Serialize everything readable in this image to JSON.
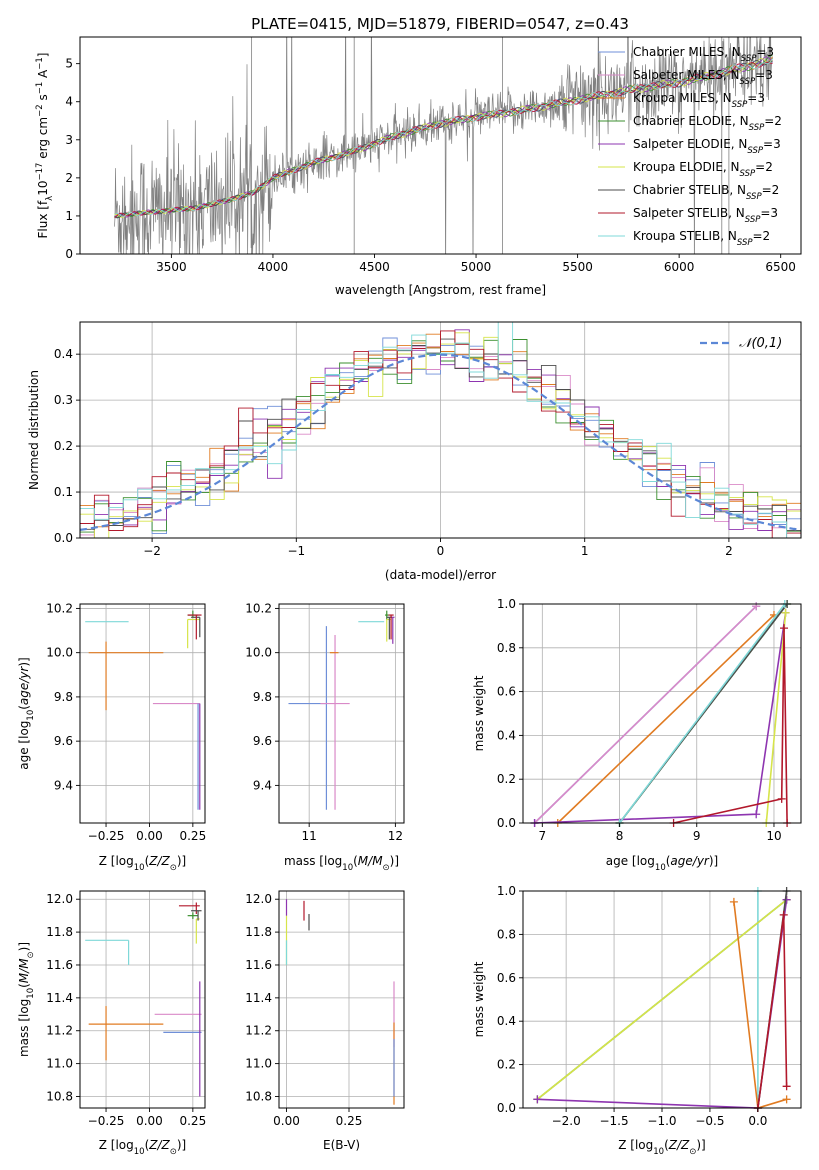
{
  "figure_title": "PLATE=0415, MJD=51879, FIBERID=0547, z=0.43",
  "colors": {
    "Chabrier MILES": "#6f8fd8",
    "Salpeter MILES": "#d98ac8",
    "Kroupa MILES": "#e07b22",
    "Chabrier ELODIE": "#3b8f2f",
    "Salpeter ELODIE": "#8e35b0",
    "Kroupa ELODIE": "#d6e44a",
    "Chabrier STELIB": "#4d4d4d",
    "Salpeter STELIB": "#b2182b",
    "Kroupa STELIB": "#7fd8d8",
    "data": "#808080",
    "gaussian": "#5b87d6",
    "grid": "#b0b0b0"
  },
  "chart_data": [
    {
      "id": "spectrum",
      "type": "line",
      "title": "PLATE=0415, MJD=51879, FIBERID=0547, z=0.43",
      "xlabel": "wavelength [Angstrom, rest frame]",
      "ylabel": "Flux [f_λ 10^-17 erg cm^-2 s^-1 A^-1]",
      "ylabel_parts": {
        "a": "Flux [f",
        "a_sub": "λ",
        "b": "10",
        "b_sup": "−17",
        "c": " erg cm",
        "c_sup": "−2",
        "d": " s",
        "d_sup": "−1",
        "e": " A",
        "e_sup": "−1",
        "f": "]"
      },
      "xlim": [
        3050,
        6600
      ],
      "ylim": [
        0,
        5.7
      ],
      "xticks": [
        3500,
        4000,
        4500,
        5000,
        5500,
        6000,
        6500
      ],
      "yticks": [
        0,
        1,
        2,
        3,
        4,
        5
      ],
      "data_range": [
        3220,
        6460
      ],
      "model_anchors": [
        [
          3220,
          1.0
        ],
        [
          3400,
          1.1
        ],
        [
          3600,
          1.2
        ],
        [
          3700,
          1.3
        ],
        [
          3900,
          1.6
        ],
        [
          4000,
          2.0
        ],
        [
          4200,
          2.4
        ],
        [
          4400,
          2.7
        ],
        [
          4600,
          3.1
        ],
        [
          4800,
          3.4
        ],
        [
          5000,
          3.6
        ],
        [
          5200,
          3.75
        ],
        [
          5400,
          3.95
        ],
        [
          5600,
          4.15
        ],
        [
          5800,
          4.35
        ],
        [
          6000,
          4.5
        ],
        [
          6200,
          4.75
        ],
        [
          6460,
          5.1
        ]
      ],
      "legend": [
        {
          "label": "Chabrier MILES, N",
          "sub": "SSP",
          "tail": "=3"
        },
        {
          "label": "Salpeter MILES, N",
          "sub": "SSP",
          "tail": "=3"
        },
        {
          "label": "Kroupa MILES, N",
          "sub": "SSP",
          "tail": "=3"
        },
        {
          "label": "Chabrier ELODIE, N",
          "sub": "SSP",
          "tail": "=2"
        },
        {
          "label": "Salpeter ELODIE, N",
          "sub": "SSP",
          "tail": "=3"
        },
        {
          "label": "Kroupa ELODIE, N",
          "sub": "SSP",
          "tail": "=2"
        },
        {
          "label": "Chabrier STELIB, N",
          "sub": "SSP",
          "tail": "=2"
        },
        {
          "label": "Salpeter STELIB, N",
          "sub": "SSP",
          "tail": "=3"
        },
        {
          "label": "Kroupa STELIB, N",
          "sub": "SSP",
          "tail": "=2"
        }
      ],
      "legend_placement": "upper right",
      "grid": false
    },
    {
      "id": "residuals",
      "type": "histogram",
      "xlabel": "(data-model)/error",
      "ylabel": "Normed distribution",
      "xlim": [
        -2.5,
        2.5
      ],
      "ylim": [
        0,
        0.47
      ],
      "xticks": [
        -2,
        -1,
        0,
        1,
        2
      ],
      "yticks": [
        0.0,
        0.1,
        0.2,
        0.3,
        0.4
      ],
      "bin_width": 0.1,
      "legend": "𝒩(0,1)",
      "legend_placement": "upper right",
      "grid": true
    },
    {
      "id": "age_vs_Z",
      "type": "errorbar",
      "xlabel": "Z [log10(Z/Z⊙)]",
      "ylabel": "age  [log10(age/yr)]",
      "xlim": [
        -0.4,
        0.32
      ],
      "ylim": [
        9.23,
        10.22
      ],
      "xticks": [
        -0.25,
        0.0,
        0.25
      ],
      "yticks": [
        9.4,
        9.6,
        9.8,
        10.0,
        10.2
      ],
      "grid": true,
      "points": [
        {
          "model": "Kroupa STELIB",
          "x": -0.12,
          "xerr": [
            0.25,
            0.0
          ],
          "y": 10.14,
          "yerr": [
            0,
            0
          ]
        },
        {
          "model": "Kroupa MILES",
          "x": -0.25,
          "xerr": [
            0.1,
            0.33
          ],
          "y": 10.0,
          "yerr": [
            0.26,
            0.05
          ]
        },
        {
          "model": "Salpeter MILES",
          "x": 0.21,
          "xerr": [
            0.19,
            0.08
          ],
          "y": 9.77,
          "yerr": [
            0,
            0
          ]
        },
        {
          "model": "Salpeter ELODIE",
          "x": 0.29,
          "xerr": [
            0,
            0
          ],
          "y": 9.77,
          "yerr": [
            0.48,
            0.0
          ]
        },
        {
          "model": "Chabrier MILES",
          "x": 0.28,
          "xerr": [
            0,
            0
          ],
          "y": 9.77,
          "yerr": [
            0.48,
            0.0
          ]
        },
        {
          "model": "Chabrier ELODIE",
          "x": 0.25,
          "xerr": [
            0.03,
            0.03
          ],
          "y": 10.17,
          "yerr": [
            0.01,
            0.02
          ]
        },
        {
          "model": "Kroupa ELODIE",
          "x": 0.22,
          "xerr": [
            0.0,
            0.07
          ],
          "y": 10.15,
          "yerr": [
            0.13,
            0.0
          ]
        },
        {
          "model": "Chabrier STELIB",
          "x": 0.29,
          "xerr": [
            0.05,
            0.0
          ],
          "y": 10.16,
          "yerr": [
            0.09,
            0.0
          ]
        },
        {
          "model": "Salpeter STELIB",
          "x": 0.27,
          "xerr": [
            0.05,
            0.03
          ],
          "y": 10.17,
          "yerr": [
            0.11,
            0.0
          ]
        }
      ]
    },
    {
      "id": "age_vs_mass",
      "type": "errorbar",
      "xlabel": "mass [log10(M/M⊙)]",
      "ylabel": "",
      "xlim": [
        10.65,
        12.1
      ],
      "ylim": [
        9.23,
        10.22
      ],
      "xticks": [
        11,
        12
      ],
      "yticks": [
        9.4,
        9.6,
        9.8,
        10.0,
        10.2
      ],
      "grid": true,
      "points": [
        {
          "model": "Chabrier MILES",
          "x": 11.2,
          "xerr": [
            0.44,
            0.0
          ],
          "y": 9.77,
          "yerr": [
            0.48,
            0.35
          ]
        },
        {
          "model": "Salpeter MILES",
          "x": 11.3,
          "xerr": [
            0.17,
            0.17
          ],
          "y": 9.77,
          "yerr": [
            0.48,
            0.31
          ]
        },
        {
          "model": "Kroupa MILES",
          "x": 11.24,
          "xerr": [
            0.0,
            0.1
          ],
          "y": 10.0,
          "yerr": [
            0.0,
            0.0
          ]
        },
        {
          "model": "Kroupa STELIB",
          "x": 11.75,
          "xerr": [
            0.18,
            0.12
          ],
          "y": 10.14,
          "yerr": [
            0,
            0
          ]
        },
        {
          "model": "Chabrier ELODIE",
          "x": 11.9,
          "xerr": [
            0.02,
            0.02
          ],
          "y": 10.17,
          "yerr": [
            0.02,
            0.02
          ]
        },
        {
          "model": "Kroupa ELODIE",
          "x": 11.9,
          "xerr": [
            0.0,
            0.05
          ],
          "y": 10.15,
          "yerr": [
            0.1,
            0.0
          ]
        },
        {
          "model": "Salpeter ELODIE",
          "x": 11.97,
          "xerr": [
            0.02,
            0.02
          ],
          "y": 10.16,
          "yerr": [
            0.12,
            0.0
          ]
        },
        {
          "model": "Chabrier STELIB",
          "x": 11.93,
          "xerr": [
            0.03,
            0.03
          ],
          "y": 10.16,
          "yerr": [
            0.1,
            0.0
          ]
        },
        {
          "model": "Salpeter STELIB",
          "x": 11.95,
          "xerr": [
            0.03,
            0.03
          ],
          "y": 10.17,
          "yerr": [
            0.11,
            0.0
          ]
        }
      ]
    },
    {
      "id": "weight_vs_age",
      "type": "line",
      "xlabel": "age  [log10(age/yr)]",
      "ylabel": "mass weight",
      "xlim": [
        6.75,
        10.35
      ],
      "ylim": [
        0,
        1.0
      ],
      "xticks": [
        7,
        8,
        9,
        10
      ],
      "yticks": [
        0.0,
        0.2,
        0.4,
        0.6,
        0.8,
        1.0
      ],
      "grid": true,
      "series": [
        {
          "model": "Chabrier MILES",
          "points": [
            [
              6.9,
              0.0
            ],
            [
              9.77,
              0.99
            ]
          ]
        },
        {
          "model": "Salpeter MILES",
          "points": [
            [
              6.9,
              0.0
            ],
            [
              9.77,
              0.99
            ]
          ]
        },
        {
          "model": "Kroupa MILES",
          "points": [
            [
              7.2,
              0.0
            ],
            [
              10.0,
              0.95
            ]
          ]
        },
        {
          "model": "Chabrier ELODIE",
          "points": [
            [
              8.0,
              0.0
            ],
            [
              10.17,
              1.0
            ]
          ]
        },
        {
          "model": "Salpeter ELODIE",
          "points": [
            [
              6.9,
              0.0
            ],
            [
              9.77,
              0.04
            ],
            [
              10.15,
              0.96
            ]
          ]
        },
        {
          "model": "Kroupa ELODIE",
          "points": [
            [
              9.9,
              0.0
            ],
            [
              10.15,
              0.96
            ]
          ]
        },
        {
          "model": "Chabrier STELIB",
          "points": [
            [
              8.0,
              0.0
            ],
            [
              10.17,
              1.0
            ]
          ]
        },
        {
          "model": "Salpeter STELIB",
          "points": [
            [
              8.7,
              0.0
            ],
            [
              10.1,
              0.11
            ],
            [
              10.13,
              0.89
            ],
            [
              10.17,
              0.0
            ]
          ]
        },
        {
          "model": "Kroupa STELIB",
          "points": [
            [
              8.0,
              0.0
            ],
            [
              10.14,
              1.0
            ]
          ]
        }
      ]
    },
    {
      "id": "mass_vs_Z",
      "type": "errorbar",
      "xlabel": "Z [log10(Z/Z⊙)]",
      "ylabel": "mass [log10(M/M⊙)]",
      "xlim": [
        -0.4,
        0.32
      ],
      "ylim": [
        10.73,
        12.05
      ],
      "xticks": [
        -0.25,
        0.0,
        0.25
      ],
      "yticks": [
        10.8,
        11.0,
        11.2,
        11.4,
        11.6,
        11.8,
        12.0
      ],
      "grid": true,
      "points": [
        {
          "model": "Kroupa STELIB",
          "x": -0.12,
          "xerr": [
            0.25,
            0.0
          ],
          "y": 11.75,
          "yerr": [
            0.15,
            0.0
          ]
        },
        {
          "model": "Kroupa MILES",
          "x": -0.25,
          "xerr": [
            0.1,
            0.33
          ],
          "y": 11.24,
          "yerr": [
            0.22,
            0.11
          ]
        },
        {
          "model": "Salpeter MILES",
          "x": 0.21,
          "xerr": [
            0.18,
            0.09
          ],
          "y": 11.3,
          "yerr": [
            0,
            0
          ]
        },
        {
          "model": "Chabrier MILES",
          "x": 0.22,
          "xerr": [
            0.14,
            0.08
          ],
          "y": 11.19,
          "yerr": [
            0,
            0
          ]
        },
        {
          "model": "Salpeter ELODIE",
          "x": 0.29,
          "xerr": [
            0,
            0
          ],
          "y": 11.15,
          "yerr": [
            0.35,
            0.35
          ]
        },
        {
          "model": "Chabrier ELODIE",
          "x": 0.25,
          "xerr": [
            0.03,
            0.03
          ],
          "y": 11.9,
          "yerr": [
            0.02,
            0.02
          ]
        },
        {
          "model": "Kroupa ELODIE",
          "x": 0.27,
          "xerr": [
            0.0,
            0.02
          ],
          "y": 11.88,
          "yerr": [
            0.15,
            0.0
          ]
        },
        {
          "model": "Salpeter STELIB",
          "x": 0.27,
          "xerr": [
            0.1,
            0.02
          ],
          "y": 11.96,
          "yerr": [
            0.05,
            0.02
          ]
        },
        {
          "model": "Chabrier STELIB",
          "x": 0.28,
          "xerr": [
            0.04,
            0.02
          ],
          "y": 11.93,
          "yerr": [
            0.06,
            0.0
          ]
        }
      ]
    },
    {
      "id": "mass_vs_EBV",
      "type": "errorbar",
      "xlabel": "E(B-V)",
      "ylabel": "",
      "xlim": [
        -0.03,
        0.47
      ],
      "ylim": [
        10.73,
        12.05
      ],
      "xticks": [
        0.0,
        0.25
      ],
      "yticks": [
        10.8,
        11.0,
        11.2,
        11.4,
        11.6,
        11.8,
        12.0
      ],
      "grid": true,
      "points": [
        {
          "model": "Kroupa ELODIE",
          "x": 0.0,
          "xerr": [
            0,
            0
          ],
          "y": 11.75,
          "yerr": [
            0.15,
            0.15
          ]
        },
        {
          "model": "Kroupa STELIB",
          "x": 0.0,
          "xerr": [
            0,
            0
          ],
          "y": 11.75,
          "yerr": [
            0.15,
            0.0
          ]
        },
        {
          "model": "Salpeter ELODIE",
          "x": 0.0,
          "xerr": [
            0,
            0
          ],
          "y": 11.95,
          "yerr": [
            0.05,
            0.05
          ]
        },
        {
          "model": "Salpeter STELIB",
          "x": 0.07,
          "xerr": [
            0,
            0
          ],
          "y": 11.93,
          "yerr": [
            0.06,
            0.06
          ]
        },
        {
          "model": "Chabrier STELIB",
          "x": 0.09,
          "xerr": [
            0,
            0
          ],
          "y": 11.86,
          "yerr": [
            0.05,
            0.05
          ]
        },
        {
          "model": "Salpeter MILES",
          "x": 0.43,
          "xerr": [
            0,
            0
          ],
          "y": 11.3,
          "yerr": [
            0.2,
            0.2
          ]
        },
        {
          "model": "Kroupa MILES",
          "x": 0.43,
          "xerr": [
            0,
            0
          ],
          "y": 11.05,
          "yerr": [
            0.3,
            0.2
          ]
        },
        {
          "model": "Chabrier MILES",
          "x": 0.43,
          "xerr": [
            0,
            0
          ],
          "y": 10.95,
          "yerr": [
            0.15,
            0.2
          ]
        }
      ]
    },
    {
      "id": "weight_vs_Z",
      "type": "line",
      "xlabel": "Z [log10(Z/Z⊙)]",
      "ylabel": "mass weight",
      "xlim": [
        -2.45,
        0.45
      ],
      "ylim": [
        0,
        1.0
      ],
      "xticks": [
        -2.0,
        -1.5,
        -1.0,
        -0.5,
        0.0
      ],
      "yticks": [
        0.0,
        0.2,
        0.4,
        0.6,
        0.8,
        1.0
      ],
      "grid": true,
      "series": [
        {
          "model": "Kroupa STELIB",
          "points": [
            [
              0.0,
              0.0
            ],
            [
              0.0,
              1.0
            ]
          ]
        },
        {
          "model": "Chabrier ELODIE",
          "points": [
            [
              -2.3,
              0.04
            ],
            [
              0.3,
              0.96
            ]
          ]
        },
        {
          "model": "Kroupa ELODIE",
          "points": [
            [
              -2.3,
              0.04
            ],
            [
              0.3,
              0.96
            ]
          ]
        },
        {
          "model": "Salpeter ELODIE",
          "points": [
            [
              -2.3,
              0.04
            ],
            [
              0.0,
              0.0
            ],
            [
              0.3,
              0.96
            ]
          ]
        },
        {
          "model": "Kroupa MILES",
          "points": [
            [
              -0.25,
              0.95
            ],
            [
              0.0,
              0.0
            ],
            [
              0.3,
              0.04
            ]
          ]
        },
        {
          "model": "Chabrier STELIB",
          "points": [
            [
              0.0,
              0.0
            ],
            [
              0.3,
              1.0
            ]
          ]
        },
        {
          "model": "Salpeter STELIB",
          "points": [
            [
              0.0,
              0.0
            ],
            [
              0.27,
              0.89
            ],
            [
              0.3,
              0.1
            ]
          ]
        }
      ]
    }
  ]
}
